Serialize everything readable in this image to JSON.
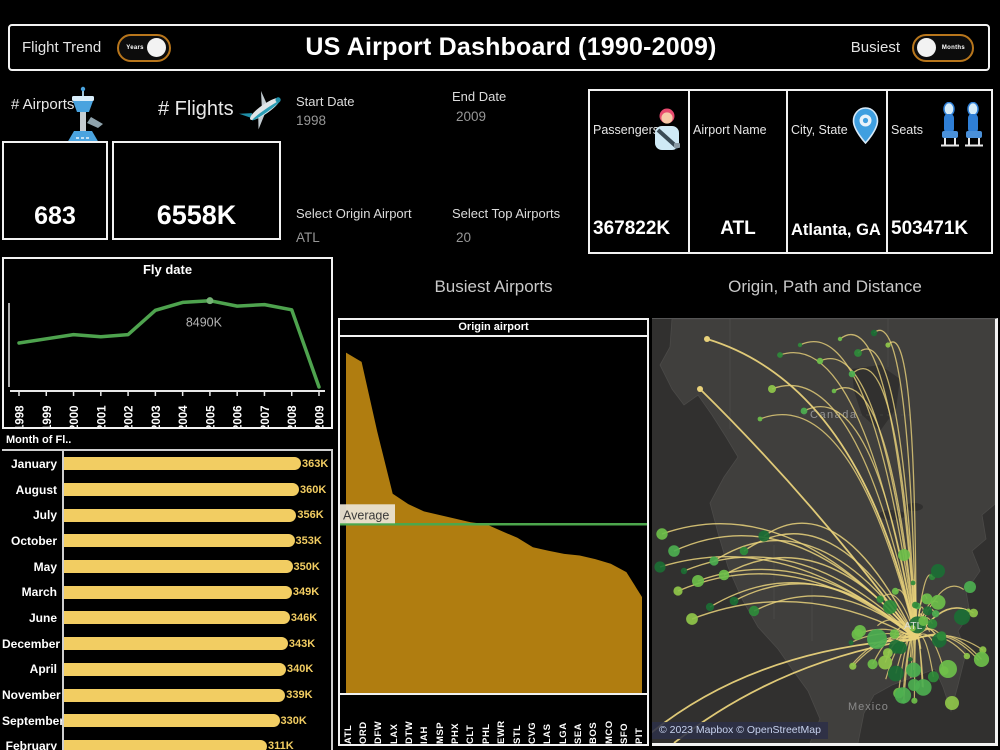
{
  "title_bar": {
    "left_label": "Flight Trend",
    "left_toggle_text": "Years",
    "title": "US Airport Dashboard (1990-2009)",
    "right_label": "Busiest",
    "right_toggle_text": "Months",
    "toggle_border_color": "#b8761c"
  },
  "kpis": {
    "airports_label": "# Airports",
    "airports_value": "683",
    "flights_label": "# Flights",
    "flights_value": "6558K"
  },
  "filters": {
    "start_date_label": "Start Date",
    "start_date_value": "1998",
    "end_date_label": "End Date",
    "end_date_value": "2009",
    "origin_label": "Select Origin Airport",
    "origin_value": "ATL",
    "top_airports_label": "Select Top Airports",
    "top_airports_value": "20"
  },
  "info_panel": {
    "columns": [
      {
        "label": "Passengers",
        "value": "367822K",
        "icon": "passenger-icon"
      },
      {
        "label": "Airport Name",
        "value": "ATL",
        "icon": null
      },
      {
        "label": "City, State",
        "value": "Atlanta, GA",
        "icon": "location-pin-icon"
      },
      {
        "label": "Seats",
        "value": "503471K",
        "icon": "seats-icon"
      }
    ]
  },
  "chart_data": [
    {
      "id": "fly_date_trend",
      "type": "line",
      "title": "Fly date",
      "x": [
        1998,
        1999,
        2000,
        2001,
        2002,
        2003,
        2004,
        2005,
        2006,
        2007,
        2008,
        2009
      ],
      "values": [
        6780,
        6950,
        7120,
        7030,
        7120,
        8100,
        8420,
        8490,
        8270,
        8330,
        8120,
        5000
      ],
      "ylim": [
        5000,
        8800
      ],
      "peak_annotation": {
        "x": 2005,
        "label": "8490K"
      },
      "line_color": "#4ea34e",
      "xlabel": "",
      "ylabel": "",
      "legend": "none",
      "grid": false
    },
    {
      "id": "busiest_months",
      "type": "bar",
      "title": "Month of Fl..",
      "orientation": "horizontal",
      "categories": [
        "January",
        "August",
        "July",
        "October",
        "May",
        "March",
        "June",
        "December",
        "April",
        "November",
        "September",
        "February"
      ],
      "values": [
        363,
        360,
        356,
        353,
        350,
        349,
        346,
        343,
        340,
        339,
        330,
        311
      ],
      "labels": [
        "363K",
        "360K",
        "356K",
        "353K",
        "350K",
        "349K",
        "346K",
        "343K",
        "340K",
        "339K",
        "330K",
        "311K"
      ],
      "bar_color": "#f2cd62",
      "xlim": [
        0,
        375
      ]
    },
    {
      "id": "busiest_airports",
      "type": "area",
      "section_title": "Busiest Airports",
      "title": "Origin airport",
      "categories": [
        "ATL",
        "ORD",
        "DFW",
        "LAX",
        "DTW",
        "IAH",
        "MSP",
        "PHX",
        "CLT",
        "PHL",
        "EWR",
        "STL",
        "CVG",
        "LAS",
        "LGA",
        "SEA",
        "BOS",
        "MCO",
        "SFO",
        "PIT"
      ],
      "values": [
        6560,
        6380,
        5040,
        3840,
        3640,
        3500,
        3430,
        3360,
        3290,
        3250,
        3120,
        2990,
        2810,
        2740,
        2680,
        2650,
        2580,
        2490,
        2330,
        1850
      ],
      "ylim": [
        0,
        6860
      ],
      "average_line": {
        "label": "Average",
        "value": 3250
      },
      "area_color": "#b07d10",
      "avg_color": "#4ca64c"
    }
  ],
  "map": {
    "section_title": "Origin, Path and Distance",
    "labels": {
      "country_top": "Canada",
      "country_bottom": "Mexico",
      "hub": "ATL"
    },
    "attribution": "© 2023 Mapbox © OpenStreetMap",
    "path_color": "#e9d27b",
    "dot_colors": [
      "#8fc74a",
      "#6cbf4a",
      "#4caf50",
      "#2e8b3a",
      "#1b6e34"
    ]
  }
}
